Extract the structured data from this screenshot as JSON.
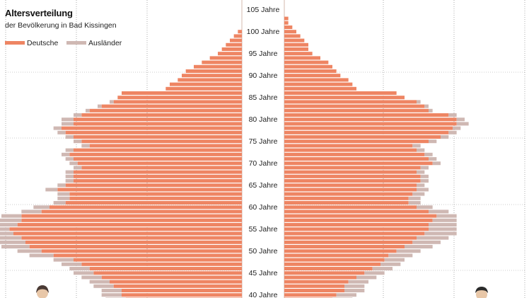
{
  "title": "Altersverteilung",
  "subtitle": "der Bevölkerung in Bad Kissingen",
  "colors": {
    "deutsche": "#ee8563",
    "auslaender": "#cfb8b3",
    "grid": "#999999",
    "text": "#222222"
  },
  "legend": {
    "deutsche": "Deutsche",
    "auslaender": "Ausländer"
  },
  "chart_data": {
    "type": "bar",
    "orientation": "horizontal-pyramid",
    "age_unit": "Jahre",
    "age_range_visible": [
      40,
      107
    ],
    "age_tick_labels": [
      "105 Jahre",
      "100 Jahre",
      "95 Jahre",
      "90 Jahre",
      "85 Jahre",
      "80 Jahre",
      "75 Jahre",
      "70 Jahre",
      "65 Jahre",
      "60 Jahre",
      "55 Jahre",
      "50 Jahre",
      "45 Jahre",
      "40 Jahre"
    ],
    "ages": [
      107,
      106,
      105,
      104,
      103,
      102,
      101,
      100,
      99,
      98,
      97,
      96,
      95,
      94,
      93,
      92,
      91,
      90,
      89,
      88,
      87,
      86,
      85,
      84,
      83,
      82,
      81,
      80,
      79,
      78,
      77,
      76,
      75,
      74,
      73,
      72,
      71,
      70,
      69,
      68,
      68,
      67,
      66,
      65,
      64,
      63,
      62,
      61,
      60,
      59,
      58,
      57,
      56,
      55,
      54,
      53,
      52,
      51,
      50,
      49,
      48,
      47,
      46,
      45,
      44,
      43,
      42,
      41,
      40
    ],
    "left_deutsche": [
      0,
      0,
      0,
      0,
      0,
      0,
      1,
      2,
      3,
      4,
      5,
      6,
      8,
      10,
      12,
      14,
      15,
      16,
      18,
      19,
      30,
      31,
      32,
      35,
      38,
      40,
      42,
      42,
      45,
      44,
      42,
      40,
      38,
      42,
      43,
      42,
      41,
      40,
      42,
      42,
      42,
      44,
      46,
      43,
      43,
      44,
      48,
      50,
      55,
      55,
      56,
      58,
      57,
      55,
      54,
      53,
      50,
      47,
      42,
      40,
      38,
      37,
      35,
      33,
      32,
      30,
      30,
      29,
      28
    ],
    "left_auslaender": [
      0,
      0,
      0,
      0,
      0,
      0,
      0,
      0,
      0,
      0,
      0,
      0,
      0,
      0,
      0,
      0,
      0,
      0,
      0,
      0,
      0,
      0,
      1,
      1,
      1,
      2,
      3,
      3,
      2,
      2,
      2,
      2,
      2,
      2,
      2,
      2,
      2,
      2,
      2,
      2,
      2,
      2,
      3,
      3,
      3,
      3,
      4,
      5,
      5,
      6,
      6,
      7,
      7,
      7,
      7,
      7,
      6,
      6,
      5,
      5,
      5,
      5,
      5,
      5,
      5,
      5,
      5,
      5,
      5
    ],
    "right_deutsche": [
      0,
      0,
      0,
      1,
      1,
      2,
      3,
      4,
      5,
      6,
      6,
      7,
      9,
      11,
      12,
      13,
      14,
      16,
      17,
      18,
      28,
      30,
      33,
      35,
      36,
      41,
      43,
      43,
      42,
      41,
      39,
      36,
      32,
      33,
      35,
      36,
      37,
      34,
      33,
      34,
      34,
      33,
      33,
      32,
      31,
      31,
      33,
      36,
      38,
      37,
      36,
      36,
      35,
      33,
      32,
      30,
      28,
      26,
      25,
      24,
      22,
      20,
      18,
      16,
      15,
      15,
      13,
      12,
      11
    ],
    "right_auslaender": [
      0,
      0,
      0,
      0,
      0,
      0,
      0,
      0,
      0,
      0,
      0,
      0,
      0,
      0,
      0,
      0,
      0,
      0,
      0,
      0,
      0,
      0,
      1,
      1,
      1,
      2,
      2,
      3,
      2,
      2,
      2,
      2,
      2,
      2,
      2,
      2,
      2,
      2,
      2,
      2,
      2,
      2,
      3,
      3,
      3,
      3,
      4,
      5,
      5,
      6,
      7,
      7,
      8,
      8,
      7,
      7,
      6,
      6,
      5,
      5,
      5,
      5,
      5,
      5,
      5,
      5,
      5,
      5,
      5
    ],
    "xlim": [
      0,
      60
    ],
    "grid": true,
    "legend_position": "top-left"
  }
}
